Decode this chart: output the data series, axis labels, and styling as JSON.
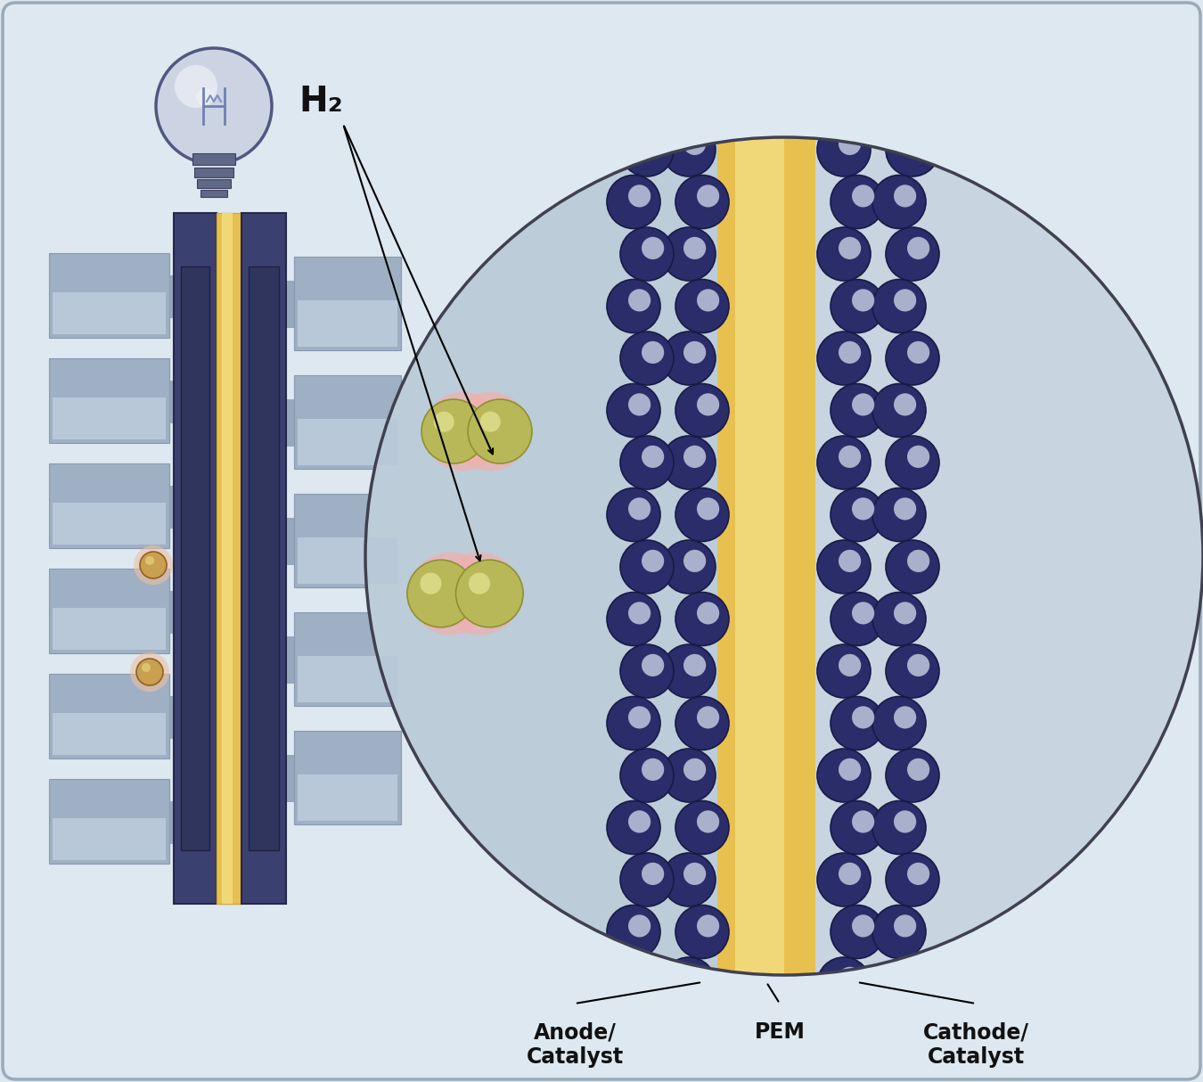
{
  "bg_color": "#dde8f0",
  "bg_outer": "#ccd8e4",
  "h2_label": "H₂",
  "anode_label": "Anode/\nCatalyst",
  "pem_label": "PEM",
  "cathode_label": "Cathode/\nCatalyst",
  "dark_navy": "#2a2d6a",
  "navy_edge": "#181a45",
  "bead_inner": "#a8b0cc",
  "gold_pem": "#d4a830",
  "gold_pem_mid": "#e8c050",
  "gold_pem_light": "#f0d878",
  "bulb_glass": "#d0d8e8",
  "bulb_outline": "#505880",
  "bulb_base": "#606888",
  "hydrogen_pink": "#f0aaaa",
  "hydrogen_gray": "#b0b060",
  "hydrogen_gray2": "#c8c870",
  "circle_bg": "#bcccd8",
  "circle_bg_right": "#c8d4e0",
  "label_color": "#111111",
  "plate_dark": "#3a4070",
  "plate_mid": "#4a5090",
  "plate_gold": "#c8a030",
  "rib_gray": "#8898b0",
  "rib_gray2": "#a0b0c4",
  "rib_light": "#b8c8d8",
  "conn_gray": "#98a8bc"
}
